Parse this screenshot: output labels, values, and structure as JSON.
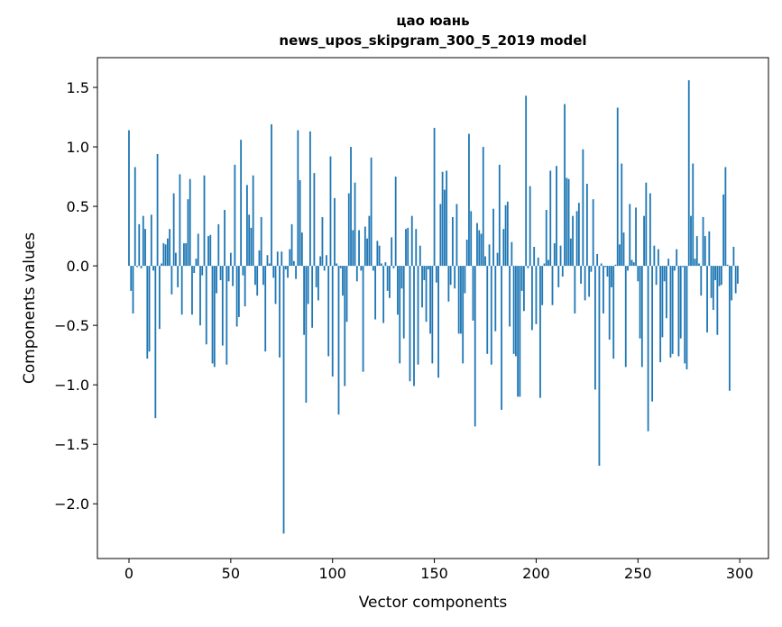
{
  "chart_data": {
    "type": "bar",
    "title_line1": "цао юань",
    "title_line2": "news_upos_skipgram_300_5_2019 model",
    "xlabel": "Vector components",
    "ylabel": "Components values",
    "xlim": [
      -15.5,
      314.1
    ],
    "ylim": [
      -2.46,
      1.75
    ],
    "xticks": [
      0,
      50,
      100,
      150,
      200,
      250,
      300
    ],
    "xtick_labels": [
      "0",
      "50",
      "100",
      "150",
      "200",
      "250",
      "300"
    ],
    "yticks": [
      -2.0,
      -1.5,
      -1.0,
      -0.5,
      0.0,
      0.5,
      1.0,
      1.5
    ],
    "ytick_labels": [
      "−2.0",
      "−1.5",
      "−1.0",
      "−0.5",
      "0.0",
      "0.5",
      "1.0",
      "1.5"
    ],
    "grid": false,
    "bar_color": "#1f77b4",
    "values": [
      1.14,
      -0.21,
      -0.4,
      0.83,
      -0.01,
      0.35,
      -0.02,
      0.42,
      0.31,
      -0.78,
      -0.72,
      0.43,
      -0.04,
      -1.28,
      0.94,
      -0.53,
      0.02,
      0.19,
      0.18,
      0.23,
      0.31,
      -0.24,
      0.61,
      0.11,
      -0.18,
      0.77,
      -0.41,
      0.19,
      0.19,
      0.56,
      0.73,
      -0.41,
      -0.06,
      0.06,
      0.27,
      -0.5,
      -0.08,
      0.76,
      -0.66,
      0.25,
      0.26,
      -0.82,
      -0.85,
      -0.23,
      0.35,
      -0.12,
      -0.67,
      0.47,
      -0.83,
      -0.13,
      0.11,
      -0.17,
      0.85,
      -0.51,
      -0.43,
      1.06,
      -0.08,
      -0.34,
      0.68,
      0.43,
      0.32,
      0.76,
      -0.16,
      -0.25,
      0.13,
      0.41,
      -0.16,
      -0.72,
      0.09,
      0.02,
      1.19,
      -0.1,
      -0.32,
      0.12,
      -0.77,
      0.12,
      -2.25,
      -0.03,
      -0.1,
      0.14,
      0.35,
      0.04,
      -0.11,
      1.14,
      0.72,
      0.28,
      -0.58,
      -1.15,
      -0.32,
      1.13,
      -0.52,
      0.78,
      -0.18,
      -0.29,
      0.08,
      0.41,
      -0.04,
      0.09,
      -0.76,
      0.92,
      -0.93,
      0.57,
      0.02,
      -1.25,
      -0.02,
      -0.25,
      -1.01,
      -0.47,
      0.61,
      1.0,
      0.3,
      0.7,
      -0.13,
      0.3,
      -0.04,
      -0.89,
      0.33,
      0.23,
      0.42,
      0.91,
      -0.04,
      -0.45,
      0.21,
      0.17,
      0.02,
      -0.48,
      0.03,
      -0.21,
      -0.27,
      0.24,
      -0.02,
      0.75,
      -0.41,
      -0.82,
      -0.19,
      -0.61,
      0.31,
      0.32,
      -0.97,
      0.42,
      -1.01,
      0.31,
      -0.83,
      0.17,
      -0.35,
      -0.12,
      -0.47,
      -0.03,
      -0.57,
      -0.82,
      1.16,
      -0.14,
      -0.94,
      0.52,
      0.79,
      0.64,
      0.8,
      -0.3,
      -0.16,
      0.41,
      -0.19,
      0.52,
      -0.57,
      -0.57,
      -0.82,
      -0.23,
      0.22,
      1.11,
      0.46,
      -0.46,
      -1.35,
      0.36,
      0.3,
      0.27,
      1.0,
      0.08,
      -0.74,
      0.18,
      -0.83,
      0.48,
      -0.55,
      0.11,
      0.85,
      -1.21,
      0.31,
      0.51,
      0.54,
      -0.51,
      0.2,
      -0.74,
      -0.76,
      -1.1,
      -1.1,
      -0.21,
      -0.38,
      1.43,
      -0.02,
      0.67,
      -0.54,
      0.16,
      -0.49,
      0.07,
      -1.11,
      -0.33,
      0.02,
      0.47,
      0.05,
      0.8,
      -0.33,
      0.19,
      0.84,
      -0.18,
      0.17,
      -0.09,
      1.36,
      0.74,
      0.73,
      0.23,
      0.42,
      -0.4,
      0.46,
      0.53,
      -0.15,
      0.98,
      -0.29,
      0.69,
      -0.26,
      -0.05,
      0.56,
      -1.04,
      0.1,
      -1.68,
      0.02,
      -0.4,
      -0.01,
      -0.09,
      -0.62,
      -0.18,
      -0.78,
      0.01,
      1.33,
      0.18,
      0.86,
      0.28,
      -0.85,
      -0.04,
      0.52,
      0.05,
      0.03,
      0.49,
      -0.13,
      -0.61,
      -0.85,
      0.42,
      0.7,
      -1.39,
      0.61,
      -1.14,
      0.17,
      -0.16,
      0.14,
      -0.81,
      -0.6,
      -0.13,
      -0.44,
      0.06,
      -0.77,
      -0.74,
      -0.04,
      0.14,
      -0.76,
      -0.61,
      -0.01,
      -0.82,
      -0.87,
      1.56,
      0.42,
      0.86,
      0.06,
      0.25,
      0.02,
      -0.25,
      0.41,
      0.25,
      -0.56,
      0.29,
      -0.27,
      -0.37,
      -0.12,
      -0.58,
      -0.17,
      -0.16,
      0.6,
      0.83,
      0.01,
      -1.05,
      -0.29,
      0.16,
      -0.23,
      -0.15
    ]
  }
}
